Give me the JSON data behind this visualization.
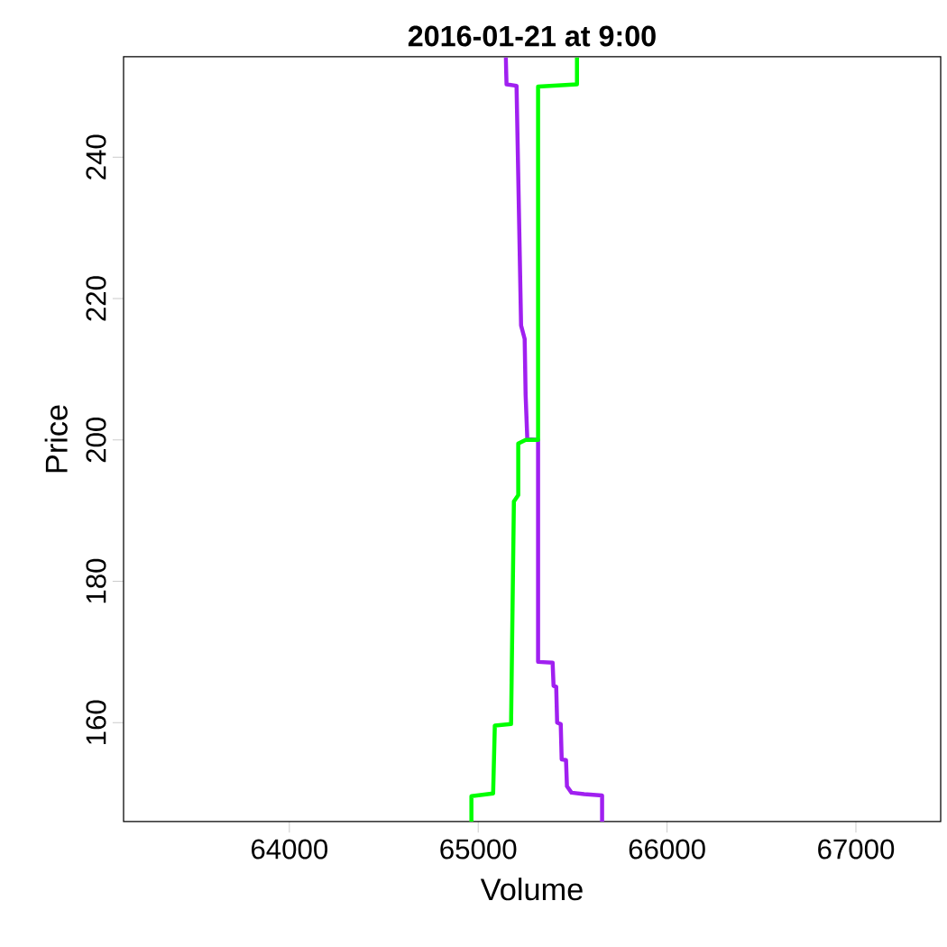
{
  "chart_data": {
    "type": "line",
    "title": "2016-01-21 at 9:00",
    "xlabel": "Volume",
    "ylabel": "Price",
    "xlim": [
      63122,
      67449
    ],
    "ylim": [
      146.0,
      254.2
    ],
    "xticks": [
      64000,
      65000,
      66000,
      67000
    ],
    "yticks": [
      160,
      180,
      200,
      220,
      240
    ],
    "line_style": "solid",
    "series": [
      {
        "color": "#a020f0",
        "x": [
          65146,
          65150,
          65203,
          65227,
          65246,
          65251,
          65260,
          65317,
          65317,
          65394,
          65399,
          65413,
          65418,
          65437,
          65442,
          65465,
          65470,
          65494,
          65561,
          65656,
          65656
        ],
        "values": [
          254.1,
          250.3,
          250.1,
          216.2,
          214.3,
          206.4,
          200.1,
          200.0,
          168.6,
          168.5,
          165.2,
          165.1,
          160.0,
          159.8,
          154.8,
          154.7,
          151.0,
          150.1,
          149.9,
          149.7,
          146.0
        ]
      },
      {
        "color": "#00ff00",
        "x": [
          64964,
          64964,
          65079,
          65088,
          65174,
          65189,
          65212,
          65212,
          65251,
          65317,
          65317,
          65523,
          65523
        ],
        "values": [
          146.0,
          149.6,
          150.0,
          159.6,
          159.8,
          191.3,
          192.2,
          199.5,
          200.0,
          200.0,
          250.0,
          250.3,
          254.1
        ]
      }
    ]
  }
}
